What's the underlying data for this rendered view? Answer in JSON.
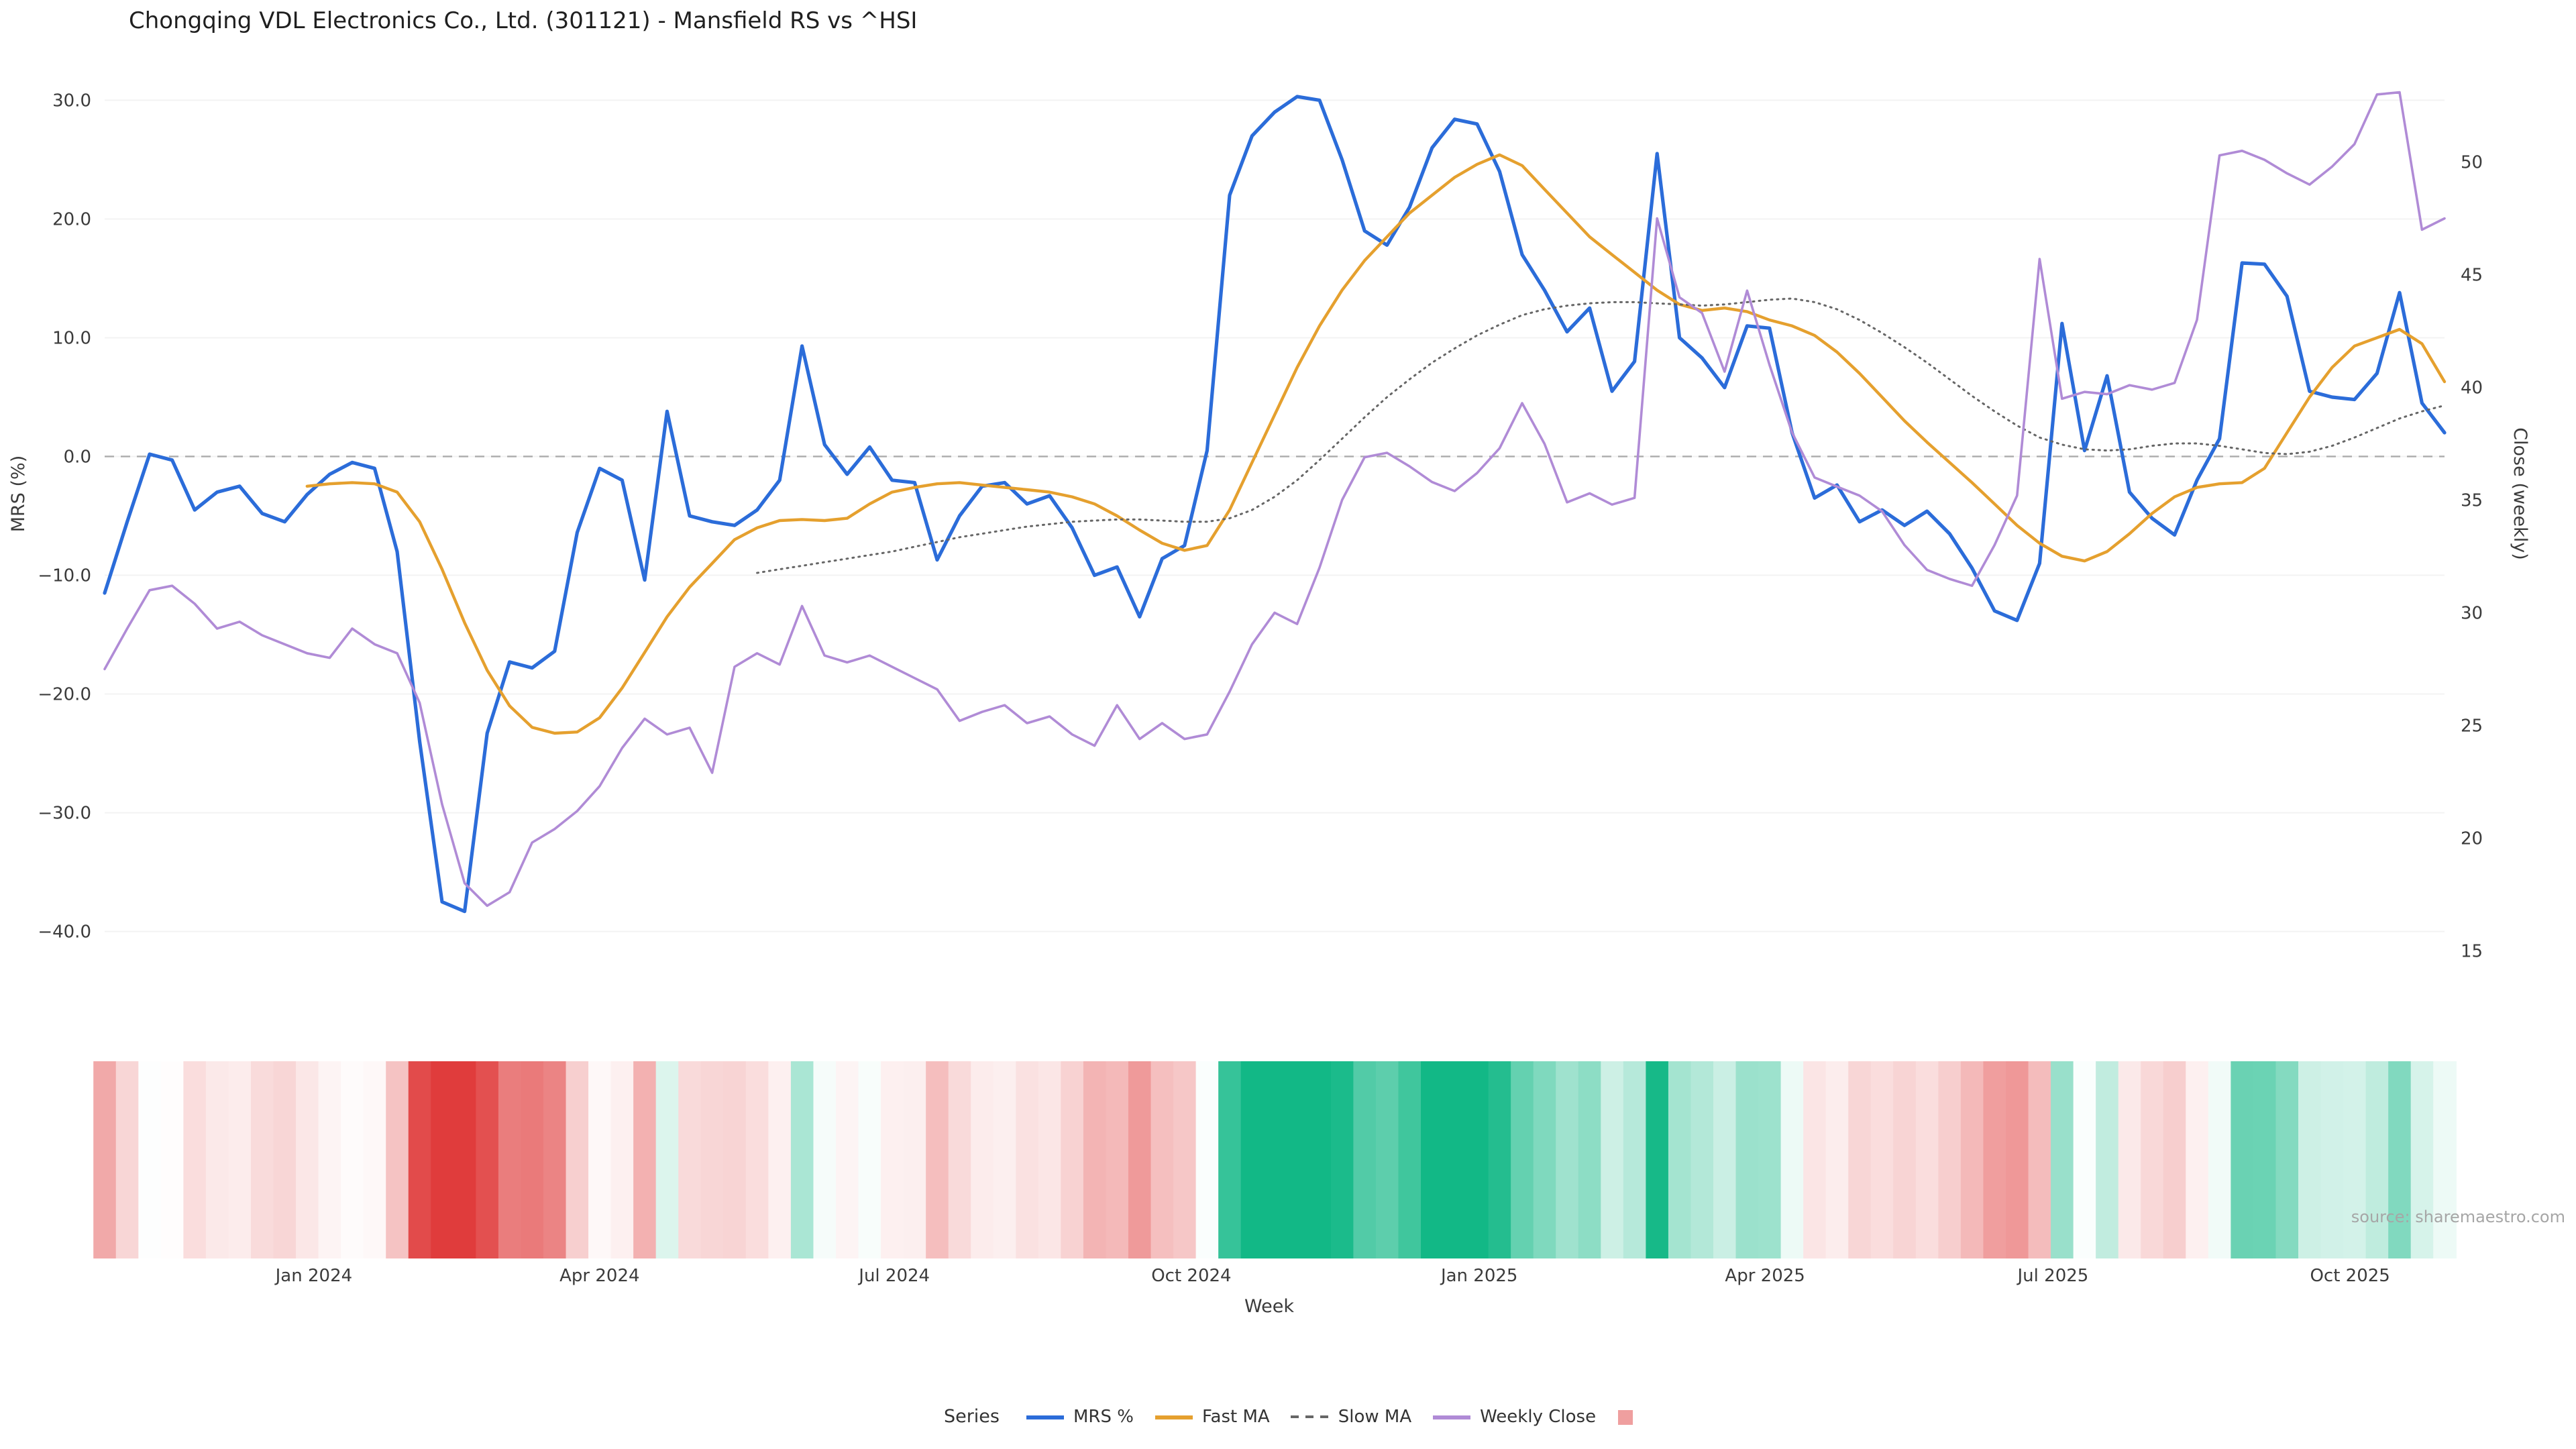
{
  "header": {
    "title": "Chongqing VDL Electronics Co., Ltd. (301121) - Mansfield RS vs ^HSI"
  },
  "source_note": "source: sharemaestro.com",
  "chart_data": {
    "type": "line",
    "title": "Chongqing VDL Electronics Co., Ltd. (301121) - Mansfield RS vs ^HSI",
    "xlabel": "Week",
    "x_unit": "weekly",
    "grid": "faint-horizontal",
    "legend_position": "bottom-center",
    "x_ticks": [
      {
        "label": "Jan 2024",
        "week": 9.3
      },
      {
        "label": "Apr 2024",
        "week": 22.0
      },
      {
        "label": "Jul 2024",
        "week": 35.1
      },
      {
        "label": "Oct 2024",
        "week": 48.3
      },
      {
        "label": "Jan 2025",
        "week": 61.1
      },
      {
        "label": "Apr 2025",
        "week": 73.8
      },
      {
        "label": "Jul 2025",
        "week": 86.6
      },
      {
        "label": "Oct 2025",
        "week": 99.8
      }
    ],
    "left_axis": {
      "label": "MRS (%)",
      "range": [
        -42,
        32
      ],
      "ticks": [
        30,
        20,
        10,
        0,
        -10,
        -20,
        -30,
        -40
      ],
      "zero_line_dashed": true
    },
    "right_axis": {
      "label": "Close (weekly)",
      "range": [
        14.8,
        53.8
      ],
      "ticks": [
        50,
        45,
        40,
        35,
        30,
        25,
        20,
        15
      ]
    },
    "series": [
      {
        "name": "MRS %",
        "axis": "left",
        "color": "#2b6cd9",
        "dash": null,
        "width": 2.6,
        "values": [
          -11.5,
          -5.5,
          0.2,
          -0.3,
          -4.5,
          -3,
          -2.5,
          -4.8,
          -5.5,
          -3.2,
          -1.5,
          -0.5,
          -1,
          -8,
          -24,
          -37.5,
          -38.3,
          -23.3,
          -17.3,
          -17.8,
          -16.4,
          -6.4,
          -1,
          -2,
          -10.4,
          3.8,
          -5,
          -5.5,
          -5.8,
          -4.5,
          -2,
          9.3,
          1,
          -1.5,
          0.8,
          -2,
          -2.2,
          -8.7,
          -5,
          -2.5,
          -2.2,
          -4,
          -3.3,
          -6,
          -10,
          -9.3,
          -13.5,
          -8.6,
          -7.5,
          0.5,
          22,
          27,
          29,
          30.3,
          30,
          25,
          19,
          17.8,
          21,
          26,
          28.4,
          28,
          24,
          17,
          14,
          10.5,
          12.5,
          5.5,
          8,
          25.5,
          10,
          8.3,
          5.8,
          11,
          10.8,
          2,
          -3.5,
          -2.4,
          -5.5,
          -4.5,
          -5.8,
          -4.6,
          -6.5,
          -9.4,
          -13,
          -13.8,
          -9,
          11.2,
          0.5,
          6.8,
          -3,
          -5.2,
          -6.6,
          -2,
          1.5,
          16.3,
          16.2,
          13.5,
          5.5,
          5,
          4.8,
          7,
          13.8,
          4.5,
          2
        ]
      },
      {
        "name": "Fast MA",
        "axis": "left",
        "color": "#e5a02e",
        "dash": null,
        "width": 2.2,
        "values": [
          null,
          null,
          null,
          null,
          null,
          null,
          null,
          null,
          null,
          -2.5,
          -2.3,
          -2.2,
          -2.3,
          -3,
          -5.5,
          -9.5,
          -14,
          -18,
          -21,
          -22.8,
          -23.3,
          -23.2,
          -22,
          -19.5,
          -16.5,
          -13.5,
          -11,
          -9,
          -7,
          -6,
          -5.4,
          -5.3,
          -5.4,
          -5.2,
          -4,
          -3,
          -2.6,
          -2.3,
          -2.2,
          -2.4,
          -2.6,
          -2.8,
          -3,
          -3.4,
          -4,
          -5,
          -6.2,
          -7.3,
          -7.9,
          -7.5,
          -4.5,
          -0.5,
          3.5,
          7.5,
          11,
          14,
          16.5,
          18.5,
          20.5,
          22,
          23.5,
          24.6,
          25.4,
          24.5,
          22.5,
          20.5,
          18.5,
          17,
          15.5,
          14,
          12.8,
          12.3,
          12.5,
          12.2,
          11.5,
          11,
          10.2,
          8.8,
          7,
          5,
          3,
          1.2,
          -0.5,
          -2.2,
          -4,
          -5.8,
          -7.3,
          -8.4,
          -8.8,
          -8,
          -6.5,
          -4.8,
          -3.4,
          -2.6,
          -2.3,
          -2.2,
          -1,
          2,
          5,
          7.5,
          9.3,
          10,
          10.7,
          9.5,
          6.3
        ]
      },
      {
        "name": "Slow MA",
        "axis": "left",
        "color": "#666666",
        "dash": "dotted",
        "width": 1.5,
        "values": [
          null,
          null,
          null,
          null,
          null,
          null,
          null,
          null,
          null,
          null,
          null,
          null,
          null,
          null,
          null,
          null,
          null,
          null,
          null,
          null,
          null,
          null,
          null,
          null,
          null,
          null,
          null,
          null,
          null,
          -9.8,
          -9.5,
          -9.2,
          -8.9,
          -8.6,
          -8.3,
          -8,
          -7.6,
          -7.2,
          -6.8,
          -6.5,
          -6.2,
          -5.9,
          -5.7,
          -5.5,
          -5.4,
          -5.3,
          -5.3,
          -5.4,
          -5.5,
          -5.5,
          -5.2,
          -4.5,
          -3.4,
          -2,
          -0.3,
          1.5,
          3.3,
          5,
          6.5,
          7.9,
          9.1,
          10.2,
          11.1,
          11.9,
          12.4,
          12.7,
          12.9,
          13,
          13,
          12.9,
          12.8,
          12.7,
          12.8,
          13,
          13.2,
          13.3,
          13,
          12.4,
          11.5,
          10.4,
          9.2,
          7.9,
          6.5,
          5.1,
          3.8,
          2.6,
          1.6,
          1,
          0.6,
          0.5,
          0.6,
          0.9,
          1.1,
          1.1,
          0.9,
          0.6,
          0.3,
          0.2,
          0.4,
          0.9,
          1.6,
          2.4,
          3.2,
          3.8,
          4.3
        ]
      },
      {
        "name": "Weekly Close",
        "axis": "right",
        "color": "#b08bd6",
        "dash": null,
        "width": 1.8,
        "values": [
          27.5,
          29.3,
          31,
          31.2,
          30.4,
          29.3,
          29.6,
          29,
          28.6,
          28.2,
          28,
          29.3,
          28.6,
          28.2,
          26,
          21.5,
          18,
          17,
          17.6,
          19.8,
          20.4,
          21.2,
          22.3,
          24,
          25.3,
          24.6,
          24.9,
          22.9,
          27.6,
          28.2,
          27.7,
          30.3,
          28.1,
          27.8,
          28.1,
          27.6,
          27.1,
          26.6,
          25.2,
          25.6,
          25.9,
          25.1,
          25.4,
          24.6,
          24.1,
          25.9,
          24.4,
          25.1,
          24.4,
          24.6,
          26.5,
          28.6,
          30,
          29.5,
          32,
          35,
          36.9,
          37.1,
          36.5,
          35.8,
          35.4,
          36.2,
          37.3,
          39.3,
          37.5,
          34.9,
          35.3,
          34.8,
          35.1,
          47.5,
          44,
          43.3,
          40.7,
          44.3,
          41,
          38,
          36,
          35.6,
          35.2,
          34.5,
          33,
          31.9,
          31.5,
          31.2,
          33,
          35.2,
          45.7,
          39.5,
          39.8,
          39.7,
          40.1,
          39.9,
          40.2,
          43,
          50.3,
          50.5,
          50.1,
          49.5,
          49,
          49.8,
          50.8,
          53,
          53.1,
          47,
          47.5
        ]
      }
    ],
    "heatmap": {
      "description": "weekly color strip derived from MRS % (red = negative, green = positive)",
      "source_series": "MRS %",
      "negative_color": "#e03c3c",
      "positive_color": "#12b886",
      "max_abs": 26
    },
    "legend": {
      "title": "Series",
      "items": [
        {
          "label": "MRS %",
          "swatch": "line",
          "color": "#2b6cd9"
        },
        {
          "label": "Fast MA",
          "swatch": "line",
          "color": "#e5a02e"
        },
        {
          "label": "Slow MA",
          "swatch": "dashed-line",
          "color": "#666666"
        },
        {
          "label": "Weekly Close",
          "swatch": "line",
          "color": "#b08bd6"
        },
        {
          "label": "",
          "swatch": "square",
          "color": "#ef9f9f"
        }
      ]
    }
  }
}
